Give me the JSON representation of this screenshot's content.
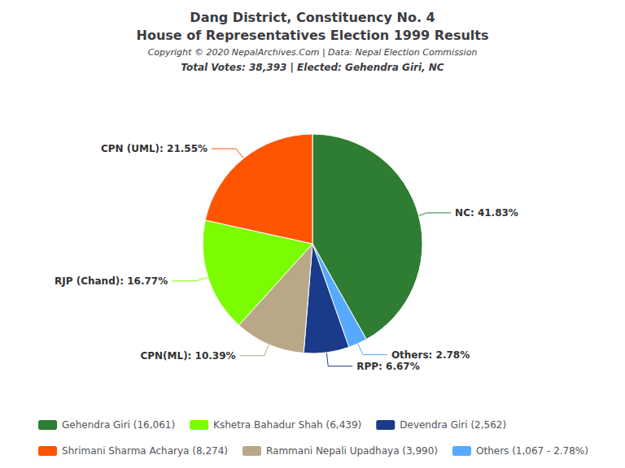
{
  "chart_data": {
    "type": "pie",
    "title": "Dang District, Constituency No. 4",
    "subtitle": "House of Representatives Election 1999 Results",
    "annotations": [
      "Copyright © 2020 NepalArchives.Com | Data: Nepal Election Commission",
      "Total Votes: 38,393 | Elected: Gehendra Giri, NC"
    ],
    "categories": [
      "Gehendra Giri (16,061)",
      "Others (1,067 - 2.78%)",
      "Devendra Giri (2,562)",
      "Rammani Nepali Upadhaya (3,990)",
      "Kshetra Bahadur Shah (6,439)",
      "Shrimani Sharma Acharya (8,274)"
    ],
    "values": [
      41.83,
      2.78,
      6.67,
      10.39,
      16.77,
      21.55
    ],
    "value_labels": [
      "NC: 41.83%",
      "Others: 2.78%",
      "RPP: 6.67%",
      "CPN(ML): 10.39%",
      "RJP (Chand): 16.77%",
      "CPN (UML): 21.55%"
    ],
    "colors": [
      "#2e7d32",
      "#55aaff",
      "#1a3a8a",
      "#b8a888",
      "#7cfc00",
      "#ff5500"
    ],
    "data_labels": true,
    "legend": "bottom",
    "legend_entries": [
      "Gehendra Giri (16,061)",
      "Kshetra Bahadur Shah (6,439)",
      "Devendra Giri (2,562)",
      "Shrimani Sharma Acharya (8,274)",
      "Rammani Nepali Upadhaya (3,990)",
      "Others (1,067 - 2.78%)"
    ]
  }
}
